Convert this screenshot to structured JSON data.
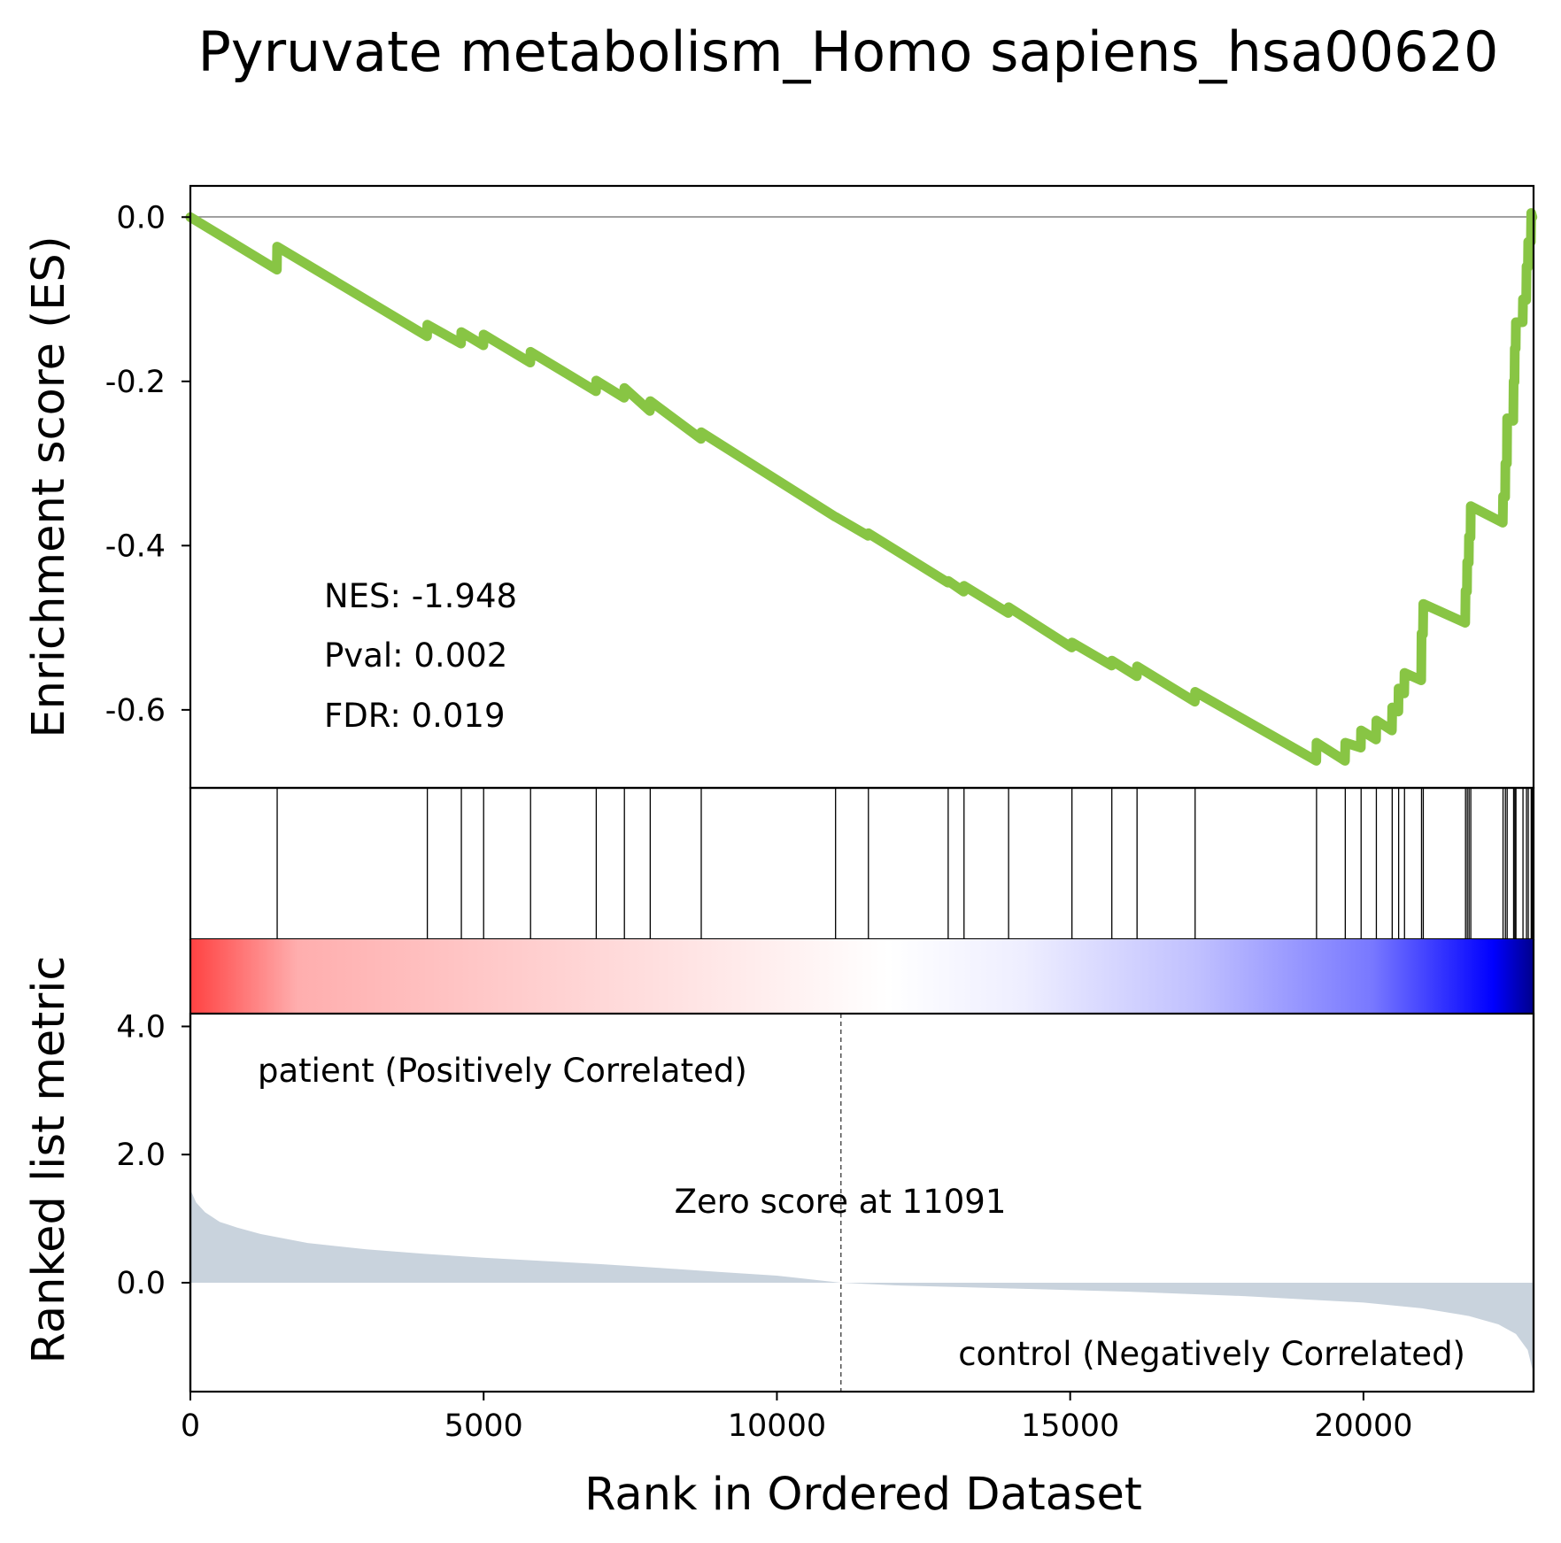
{
  "chart_data": {
    "type": "line",
    "title": "Pyruvate metabolism_Homo sapiens_hsa00620",
    "xlabel": "Rank in Ordered Dataset",
    "xlim": [
      0,
      22900
    ],
    "x_ticks": [
      {
        "value": 0,
        "label": "0"
      },
      {
        "value": 5000,
        "label": "5000"
      },
      {
        "value": 10000,
        "label": "10000"
      },
      {
        "value": 15000,
        "label": "15000"
      },
      {
        "value": 20000,
        "label": "20000"
      }
    ],
    "es_panel": {
      "ylabel": "Enrichment score (ES)",
      "ylim": [
        -0.695,
        0.038
      ],
      "y_ticks": [
        {
          "value": 0.0,
          "label": "0.0"
        },
        {
          "value": -0.2,
          "label": "-0.2"
        },
        {
          "value": -0.4,
          "label": "-0.4"
        },
        {
          "value": -0.6,
          "label": "-0.6"
        }
      ],
      "line_color": "#88c544",
      "zero_line": true,
      "stats": {
        "nes": "NES: -1.948",
        "pval": "Pval: 0.002",
        "fdr": "FDR: 0.019"
      },
      "hit_ranks": [
        1480,
        4040,
        4620,
        5000,
        5800,
        6920,
        7400,
        7840,
        8710,
        11000,
        11560,
        12920,
        13190,
        13950,
        15030,
        15710,
        16140,
        17130,
        19200,
        19690,
        19960,
        20220,
        20490,
        20600,
        20700,
        20990,
        21020,
        21740,
        21770,
        21800,
        21830,
        22380,
        22420,
        22450,
        22560,
        22580,
        22600,
        22720,
        22780,
        22810,
        22860,
        22880
      ],
      "running_es": [
        [
          0,
          0.0
        ],
        [
          1475,
          -0.064
        ],
        [
          1480,
          -0.036
        ],
        [
          4035,
          -0.145
        ],
        [
          4040,
          -0.131
        ],
        [
          4615,
          -0.154
        ],
        [
          4620,
          -0.14
        ],
        [
          4995,
          -0.156
        ],
        [
          5000,
          -0.143
        ],
        [
          5795,
          -0.177
        ],
        [
          5800,
          -0.164
        ],
        [
          6915,
          -0.212
        ],
        [
          6920,
          -0.199
        ],
        [
          7395,
          -0.22
        ],
        [
          7400,
          -0.208
        ],
        [
          7835,
          -0.236
        ],
        [
          7840,
          -0.224
        ],
        [
          8705,
          -0.27
        ],
        [
          8710,
          -0.262
        ],
        [
          10995,
          -0.365
        ],
        [
          11000,
          -0.365
        ],
        [
          11555,
          -0.388
        ],
        [
          11560,
          -0.385
        ],
        [
          12915,
          -0.445
        ],
        [
          12920,
          -0.443
        ],
        [
          13185,
          -0.456
        ],
        [
          13190,
          -0.449
        ],
        [
          13945,
          -0.482
        ],
        [
          13950,
          -0.475
        ],
        [
          15025,
          -0.524
        ],
        [
          15030,
          -0.518
        ],
        [
          15705,
          -0.546
        ],
        [
          15710,
          -0.54
        ],
        [
          16135,
          -0.559
        ],
        [
          16140,
          -0.547
        ],
        [
          17125,
          -0.59
        ],
        [
          17130,
          -0.578
        ],
        [
          19195,
          -0.662
        ],
        [
          19200,
          -0.64
        ],
        [
          19685,
          -0.662
        ],
        [
          19690,
          -0.64
        ],
        [
          19955,
          -0.646
        ],
        [
          19960,
          -0.625
        ],
        [
          20215,
          -0.636
        ],
        [
          20220,
          -0.613
        ],
        [
          20485,
          -0.625
        ],
        [
          20490,
          -0.597
        ],
        [
          20595,
          -0.602
        ],
        [
          20600,
          -0.574
        ],
        [
          20695,
          -0.58
        ],
        [
          20700,
          -0.555
        ],
        [
          20985,
          -0.564
        ],
        [
          20990,
          -0.507
        ],
        [
          21015,
          -0.508
        ],
        [
          21020,
          -0.471
        ],
        [
          21735,
          -0.494
        ],
        [
          21740,
          -0.455
        ],
        [
          21765,
          -0.456
        ],
        [
          21770,
          -0.42
        ],
        [
          21795,
          -0.421
        ],
        [
          21800,
          -0.389
        ],
        [
          21825,
          -0.39
        ],
        [
          21830,
          -0.352
        ],
        [
          22375,
          -0.372
        ],
        [
          22380,
          -0.34
        ],
        [
          22415,
          -0.341
        ],
        [
          22420,
          -0.3
        ],
        [
          22445,
          -0.3
        ],
        [
          22450,
          -0.245
        ],
        [
          22555,
          -0.248
        ],
        [
          22560,
          -0.2
        ],
        [
          22575,
          -0.201
        ],
        [
          22580,
          -0.16
        ],
        [
          22595,
          -0.16
        ],
        [
          22600,
          -0.128
        ],
        [
          22715,
          -0.128
        ],
        [
          22720,
          -0.1
        ],
        [
          22775,
          -0.101
        ],
        [
          22780,
          -0.06
        ],
        [
          22805,
          -0.061
        ],
        [
          22810,
          -0.03
        ],
        [
          22855,
          -0.03
        ],
        [
          22860,
          0.005
        ],
        [
          22880,
          0.0
        ]
      ]
    },
    "metric_panel": {
      "ylabel": "Ranked list metric",
      "ylim": [
        -1.7,
        4.2
      ],
      "y_ticks": [
        {
          "value": 4.0,
          "label": "4.0"
        },
        {
          "value": 2.0,
          "label": "2.0"
        },
        {
          "value": 0.0,
          "label": "0.0"
        }
      ],
      "fill_color": "#c9d3dd",
      "zero_cross_rank": 11091,
      "zero_cross_label": "Zero score at 11091",
      "positive_label": "patient (Positively Correlated)",
      "negative_label": "control (Negatively Correlated)",
      "positive_label_color": "#ff0000",
      "negative_label_color": "#0000ff",
      "metric_curve": [
        [
          0,
          1.45
        ],
        [
          100,
          1.25
        ],
        [
          250,
          1.1
        ],
        [
          500,
          0.95
        ],
        [
          800,
          0.86
        ],
        [
          1200,
          0.76
        ],
        [
          2000,
          0.62
        ],
        [
          3000,
          0.52
        ],
        [
          4000,
          0.45
        ],
        [
          5000,
          0.39
        ],
        [
          6000,
          0.34
        ],
        [
          7000,
          0.29
        ],
        [
          8000,
          0.23
        ],
        [
          9000,
          0.17
        ],
        [
          10000,
          0.11
        ],
        [
          11091,
          0.0
        ],
        [
          12000,
          -0.04
        ],
        [
          14000,
          -0.09
        ],
        [
          16000,
          -0.14
        ],
        [
          18000,
          -0.21
        ],
        [
          20000,
          -0.31
        ],
        [
          21000,
          -0.4
        ],
        [
          21800,
          -0.52
        ],
        [
          22300,
          -0.65
        ],
        [
          22600,
          -0.8
        ],
        [
          22800,
          -1.05
        ],
        [
          22880,
          -1.35
        ]
      ]
    },
    "heatmap_colors": [
      "#ff4040",
      "#ffffff",
      "#0000ff",
      "#00008b"
    ]
  }
}
